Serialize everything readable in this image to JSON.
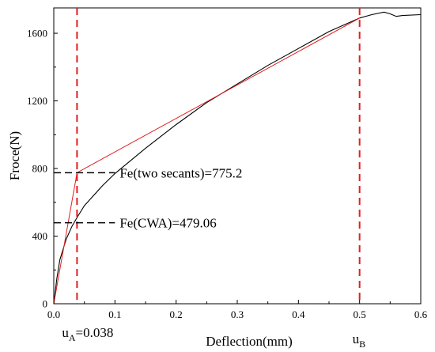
{
  "chart_data": {
    "type": "line",
    "xlabel": "Deflection(mm)",
    "ylabel": "Froce(N)",
    "xlim": [
      0,
      0.6
    ],
    "ylim": [
      0,
      1750
    ],
    "x_ticks": [
      "0.0",
      "0.1",
      "0.2",
      "0.3",
      "0.4",
      "0.5",
      "0.6"
    ],
    "x_tick_values": [
      0,
      0.1,
      0.2,
      0.3,
      0.4,
      0.5,
      0.6
    ],
    "y_ticks": [
      "0",
      "400",
      "800",
      "1200",
      "1600"
    ],
    "y_tick_values": [
      0,
      400,
      800,
      1200,
      1600
    ],
    "grid": false,
    "series": [
      {
        "color": "#000000",
        "x": [
          0,
          0.005,
          0.01,
          0.02,
          0.03,
          0.038,
          0.05,
          0.08,
          0.1,
          0.15,
          0.2,
          0.25,
          0.3,
          0.35,
          0.4,
          0.45,
          0.5,
          0.52,
          0.54,
          0.55,
          0.56,
          0.57,
          0.6
        ],
        "y": [
          0,
          150,
          260,
          380,
          460,
          510,
          580,
          700,
          770,
          920,
          1060,
          1190,
          1300,
          1410,
          1510,
          1610,
          1690,
          1710,
          1725,
          1715,
          1700,
          1705,
          1710
        ]
      },
      {
        "color": "#e02020",
        "x": [
          0,
          0.038,
          0.5
        ],
        "y": [
          0,
          775.2,
          1690
        ]
      }
    ],
    "vertical_markers": [
      {
        "x": 0.038,
        "color": "#e02020",
        "label_main": "u",
        "label_sub": "A",
        "label_suffix": "=0.038"
      },
      {
        "x": 0.5,
        "color": "#e02020",
        "label_main": "u",
        "label_sub": "B",
        "label_suffix": ""
      }
    ],
    "horizontal_markers": [
      {
        "y": 775.2,
        "x_end": 0.1,
        "text": "Fe(two secants)=775.2"
      },
      {
        "y": 479.06,
        "x_end": 0.1,
        "text": "Fe(CWA)=479.06"
      }
    ]
  }
}
